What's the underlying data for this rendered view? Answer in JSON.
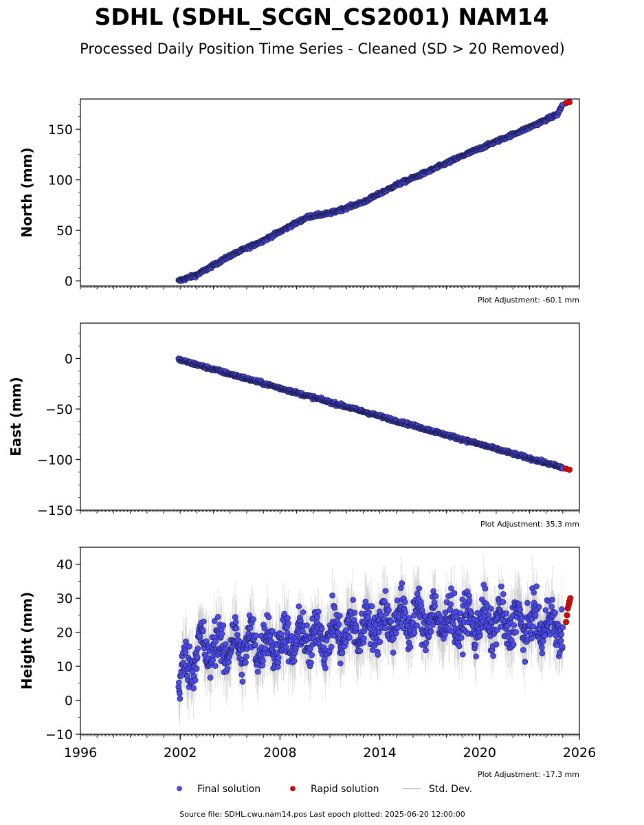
{
  "title": "SDHL (SDHL_SCGN_CS2001) NAM14",
  "subtitle": "Processed Daily Position Time Series - Cleaned (SD > 20 Removed)",
  "source_text": "Source file: SDHL.cwu.nam14.pos  Last epoch plotted: 2025-06-20 12:00:00",
  "legend": {
    "final_label": "Final solution",
    "rapid_label": "Rapid solution",
    "stddev_label": "Std. Dev."
  },
  "colors": {
    "final": "#4a4af0",
    "final_edge": "#1a1a40",
    "rapid": "#e80000",
    "stddev": "#9a9a9a"
  },
  "chart_data": [
    {
      "type": "scatter",
      "ylabel": "North (mm)",
      "adjustment": "Plot Adjustment: -60.1 mm",
      "xlim": [
        1996,
        2026
      ],
      "ylim": [
        -5,
        180
      ],
      "yticks": [
        0,
        50,
        100,
        150
      ],
      "xtick_labels_shown": false,
      "series": [
        {
          "name": "Final solution",
          "x": [
            2001.9,
            2003.0,
            2005.0,
            2007.0,
            2009.5,
            2009.8,
            2011.0,
            2013.0,
            2015.0,
            2017.0,
            2019.0,
            2021.0,
            2023.0,
            2024.7,
            2025.0
          ],
          "y": [
            0,
            6,
            25,
            40,
            62,
            64,
            67,
            78,
            95,
            109,
            124,
            138,
            152,
            165,
            175
          ],
          "noise": 1.5
        },
        {
          "name": "Rapid solution",
          "x": [
            2025.2,
            2025.4
          ],
          "y": [
            176,
            177
          ]
        }
      ]
    },
    {
      "type": "scatter",
      "ylabel": "East (mm)",
      "adjustment": "Plot Adjustment: 35.3 mm",
      "xlim": [
        1996,
        2026
      ],
      "ylim": [
        -150,
        35
      ],
      "yticks": [
        0,
        -50,
        -100,
        -150
      ],
      "xtick_labels_shown": false,
      "series": [
        {
          "name": "Final solution",
          "x": [
            2001.9,
            2025.0
          ],
          "y": [
            -1,
            -108
          ],
          "noise": 1.5
        },
        {
          "name": "Rapid solution",
          "x": [
            2025.2,
            2025.4
          ],
          "y": [
            -109,
            -110
          ]
        }
      ]
    },
    {
      "type": "scatter",
      "ylabel": "Height (mm)",
      "adjustment": "Plot Adjustment: -17.3 mm",
      "xlim": [
        1996,
        2026
      ],
      "ylim": [
        -10,
        45
      ],
      "yticks": [
        -10,
        0,
        10,
        20,
        30,
        40
      ],
      "xticks": [
        1996,
        2002,
        2008,
        2014,
        2020,
        2026
      ],
      "xtick_labels_shown": true,
      "series": [
        {
          "name": "Final solution",
          "x": [
            2001.9,
            2003.0,
            2008.0,
            2012.0,
            2015.0,
            2025.0
          ],
          "y": [
            5,
            15,
            17,
            20,
            24,
            22
          ],
          "noise": 6
        },
        {
          "name": "Rapid solution",
          "x": [
            2025.2,
            2025.25,
            2025.3,
            2025.35,
            2025.4,
            2025.45
          ],
          "y": [
            23,
            25,
            27,
            28,
            29,
            30
          ]
        }
      ]
    }
  ]
}
